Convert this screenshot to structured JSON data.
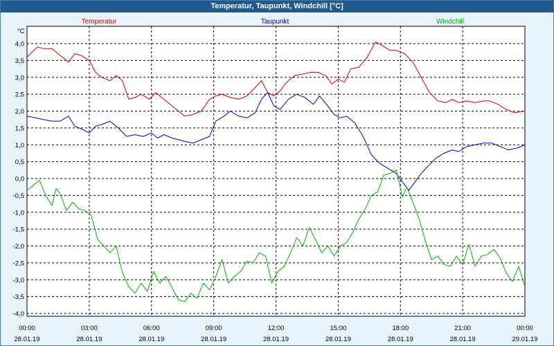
{
  "window": {
    "title": "Temperatur, Taupunkt, Windchill [°C]"
  },
  "chart_data": {
    "type": "line",
    "title": "Temperatur, Taupunkt, Windchill [°C]",
    "ylabel": "°C",
    "xlabel": "",
    "ylim": [
      -4.0,
      4.5
    ],
    "xlim_hours": [
      0,
      24
    ],
    "grid": true,
    "colors": {
      "Temperatur": "#d40000",
      "Taupunkt": "#0000c8",
      "Windchill": "#00b400"
    },
    "yticks": [
      "4,0",
      "3,5",
      "3,0",
      "2,5",
      "2,0",
      "1,5",
      "1,0",
      "0,5",
      "0,0",
      "-0,5",
      "-1,0",
      "-1,5",
      "-2,0",
      "-2,5",
      "-3,0",
      "-3,5",
      "-4,0"
    ],
    "xticks": [
      {
        "time": "00:00",
        "date": "28.01.19"
      },
      {
        "time": "03:00",
        "date": "28.01.19"
      },
      {
        "time": "06:00",
        "date": "28.01.19"
      },
      {
        "time": "09:00",
        "date": "28.01.19"
      },
      {
        "time": "12:00",
        "date": "28.01.19"
      },
      {
        "time": "15:00",
        "date": "28.01.19"
      },
      {
        "time": "18:00",
        "date": "28.01.19"
      },
      {
        "time": "21:00",
        "date": "28.01.19"
      },
      {
        "time": "00:00",
        "date": "29.01.19"
      }
    ],
    "series": [
      {
        "name": "Temperatur",
        "x": [
          0,
          0.5,
          0.8,
          1.2,
          1.6,
          2.0,
          2.3,
          2.6,
          3.0,
          3.3,
          3.6,
          4.0,
          4.3,
          4.6,
          4.9,
          5.2,
          5.5,
          5.9,
          6.2,
          6.6,
          6.9,
          7.2,
          7.6,
          8.0,
          8.4,
          8.8,
          9.1,
          9.4,
          9.8,
          10.2,
          10.6,
          11.0,
          11.3,
          11.6,
          11.9,
          12.2,
          12.5,
          12.9,
          13.3,
          13.7,
          14.0,
          14.4,
          14.7,
          15.0,
          15.3,
          15.6,
          16.0,
          16.4,
          16.8,
          17.1,
          17.5,
          17.8,
          18.2,
          18.6,
          19.0,
          19.4,
          19.8,
          20.2,
          20.5,
          20.8,
          21.2,
          21.6,
          22.0,
          22.3,
          22.7,
          23.1,
          23.5,
          24.0
        ],
        "values": [
          3.6,
          3.9,
          3.85,
          3.85,
          3.65,
          3.45,
          3.7,
          3.65,
          3.5,
          3.15,
          3.0,
          2.9,
          3.05,
          2.9,
          2.35,
          2.4,
          2.5,
          2.35,
          2.55,
          2.35,
          2.2,
          2.05,
          1.85,
          1.9,
          2.0,
          2.35,
          2.45,
          2.5,
          2.4,
          2.35,
          2.45,
          2.7,
          2.9,
          2.55,
          2.45,
          2.6,
          2.85,
          3.05,
          3.1,
          3.15,
          3.15,
          3.05,
          2.8,
          2.95,
          2.85,
          3.25,
          3.3,
          3.6,
          4.05,
          3.95,
          3.8,
          3.8,
          3.7,
          3.45,
          3.0,
          2.55,
          2.3,
          2.25,
          2.35,
          2.25,
          2.3,
          2.25,
          2.3,
          2.3,
          2.2,
          2.05,
          1.95,
          2.0
        ]
      },
      {
        "name": "Taupunkt",
        "x": [
          0,
          0.4,
          0.8,
          1.2,
          1.6,
          2.0,
          2.3,
          2.7,
          3.0,
          3.3,
          3.6,
          4.0,
          4.4,
          4.8,
          5.2,
          5.6,
          6.0,
          6.3,
          6.6,
          7.0,
          7.3,
          7.6,
          8.0,
          8.4,
          8.8,
          9.1,
          9.5,
          9.8,
          10.2,
          10.6,
          11.0,
          11.3,
          11.6,
          11.9,
          12.2,
          12.6,
          13.0,
          13.4,
          13.8,
          14.1,
          14.5,
          14.8,
          15.1,
          15.4,
          15.8,
          16.2,
          16.6,
          17.0,
          17.4,
          17.8,
          18.1,
          18.4,
          18.7,
          19.0,
          19.3,
          19.7,
          20.1,
          20.5,
          20.8,
          21.2,
          21.6,
          22.0,
          22.4,
          22.8,
          23.2,
          23.6,
          24.0
        ],
        "values": [
          1.85,
          1.8,
          1.75,
          1.7,
          1.7,
          1.85,
          1.55,
          1.45,
          1.35,
          1.55,
          1.6,
          1.7,
          1.5,
          1.25,
          1.3,
          1.25,
          1.35,
          1.2,
          1.3,
          1.2,
          1.15,
          1.1,
          1.05,
          1.15,
          1.25,
          1.7,
          1.85,
          2.0,
          1.85,
          1.8,
          1.95,
          2.35,
          2.55,
          2.15,
          2.05,
          2.35,
          2.5,
          2.4,
          2.2,
          2.45,
          2.15,
          1.9,
          1.8,
          1.85,
          1.65,
          1.25,
          0.7,
          0.45,
          0.3,
          0.15,
          -0.1,
          -0.35,
          -0.1,
          0.15,
          0.35,
          0.6,
          0.75,
          0.85,
          0.8,
          0.95,
          1.0,
          1.05,
          1.05,
          0.95,
          0.85,
          0.9,
          1.0
        ]
      },
      {
        "name": "Windchill",
        "x": [
          0,
          0.3,
          0.6,
          0.9,
          1.2,
          1.4,
          1.6,
          1.9,
          2.2,
          2.5,
          2.8,
          3.1,
          3.4,
          3.7,
          4.0,
          4.3,
          4.6,
          4.9,
          5.2,
          5.5,
          5.8,
          6.1,
          6.4,
          6.7,
          7.0,
          7.3,
          7.6,
          7.9,
          8.2,
          8.5,
          8.8,
          9.1,
          9.4,
          9.7,
          10.0,
          10.3,
          10.6,
          10.9,
          11.2,
          11.5,
          11.8,
          12.1,
          12.4,
          12.7,
          13.0,
          13.3,
          13.6,
          13.9,
          14.2,
          14.5,
          14.8,
          15.1,
          15.4,
          15.7,
          16.0,
          16.3,
          16.6,
          16.9,
          17.2,
          17.5,
          17.8,
          18.1,
          18.3,
          18.6,
          18.9,
          19.2,
          19.5,
          19.8,
          20.1,
          20.4,
          20.7,
          21.0,
          21.3,
          21.6,
          21.9,
          22.2,
          22.5,
          22.8,
          23.1,
          23.4,
          23.7,
          24.0
        ],
        "values": [
          -0.35,
          -0.2,
          -0.05,
          -0.5,
          -0.8,
          -0.3,
          -0.45,
          -0.95,
          -0.7,
          -0.9,
          -0.95,
          -1.1,
          -1.8,
          -2.0,
          -2.2,
          -2.0,
          -2.8,
          -3.2,
          -3.4,
          -3.1,
          -3.35,
          -2.75,
          -3.1,
          -2.9,
          -3.25,
          -3.6,
          -3.65,
          -3.4,
          -3.55,
          -3.1,
          -3.3,
          -2.9,
          -2.4,
          -3.1,
          -2.9,
          -2.75,
          -2.45,
          -2.5,
          -2.2,
          -2.3,
          -3.1,
          -2.75,
          -2.6,
          -2.2,
          -1.75,
          -2.0,
          -1.45,
          -1.8,
          -2.2,
          -2.0,
          -2.3,
          -2.0,
          -1.9,
          -1.6,
          -1.2,
          -0.9,
          -0.5,
          -0.4,
          0.1,
          0.15,
          0.25,
          -0.55,
          -0.25,
          -0.7,
          -1.2,
          -1.85,
          -2.4,
          -2.3,
          -2.55,
          -2.6,
          -2.3,
          -2.55,
          -1.95,
          -2.6,
          -2.3,
          -2.25,
          -2.1,
          -2.35,
          -2.8,
          -3.05,
          -2.6,
          -3.2
        ]
      }
    ]
  }
}
